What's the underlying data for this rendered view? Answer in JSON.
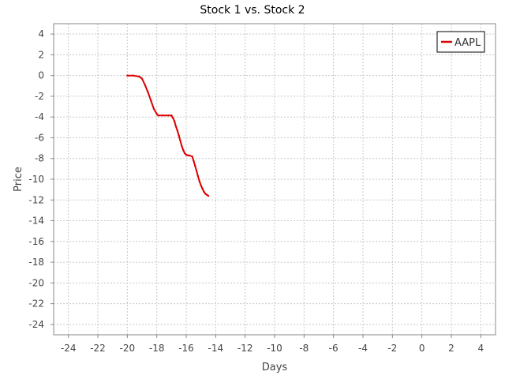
{
  "colors": {
    "series": "#dd0000",
    "grid": "#c8c8c8",
    "frame": "#888888",
    "background": "#ffffff"
  },
  "chart_data": {
    "type": "line",
    "title": "Stock 1 vs. Stock 2",
    "xlabel": "Days",
    "ylabel": "Price",
    "xlim": [
      -25,
      5
    ],
    "ylim": [
      -25,
      5
    ],
    "xticks": [
      -24,
      -22,
      -20,
      -18,
      -16,
      -14,
      -12,
      -10,
      -8,
      -6,
      -4,
      -2,
      0,
      2,
      4
    ],
    "yticks": [
      4,
      2,
      0,
      -2,
      -4,
      -6,
      -8,
      -10,
      -12,
      -14,
      -16,
      -18,
      -20,
      -22,
      -24
    ],
    "grid": true,
    "legend_position": "top-right",
    "series": [
      {
        "name": "AAPL",
        "color": "#dd0000",
        "x": [
          -20.0,
          -19.6,
          -19.2,
          -19.0,
          -18.8,
          -18.6,
          -18.4,
          -18.2,
          -18.0,
          -17.9,
          -17.6,
          -17.2,
          -17.0,
          -16.9,
          -16.8,
          -16.7,
          -16.6,
          -16.5,
          -16.4,
          -16.3,
          -16.2,
          -16.1,
          -16.0,
          -15.9,
          -15.8,
          -15.6,
          -15.5,
          -15.4,
          -15.3,
          -15.2,
          -15.1,
          -15.0,
          -14.9,
          -14.8,
          -14.7,
          -14.6,
          -14.5
        ],
        "y": [
          0.0,
          0.0,
          -0.1,
          -0.3,
          -0.9,
          -1.6,
          -2.4,
          -3.2,
          -3.7,
          -3.85,
          -3.85,
          -3.85,
          -3.85,
          -4.1,
          -4.4,
          -4.9,
          -5.3,
          -5.8,
          -6.3,
          -6.8,
          -7.2,
          -7.5,
          -7.65,
          -7.7,
          -7.7,
          -7.8,
          -8.2,
          -8.7,
          -9.2,
          -9.7,
          -10.2,
          -10.6,
          -10.9,
          -11.2,
          -11.4,
          -11.5,
          -11.6
        ]
      }
    ]
  }
}
